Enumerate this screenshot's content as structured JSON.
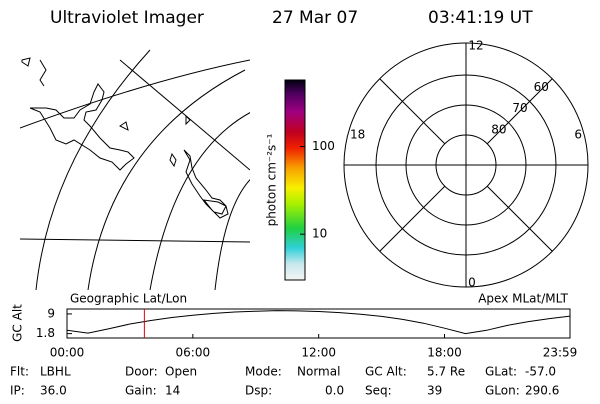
{
  "header": {
    "title": "Ultraviolet Imager",
    "date": "27 Mar 07",
    "time": "03:41:19 UT"
  },
  "colorbar": {
    "label": "photon cm⁻²s⁻¹",
    "range": [
      3,
      575
    ],
    "ticks": [
      10,
      100
    ]
  },
  "polar": {
    "mlt_labels": [
      "12",
      "18",
      "6",
      "0"
    ],
    "lat_rings": [
      {
        "value": 60,
        "label": "60"
      },
      {
        "value": 70,
        "label": "70"
      },
      {
        "value": 80,
        "label": "80"
      }
    ]
  },
  "orbit": {
    "y_label": "GC Alt",
    "left_title": "Geographic Lat/Lon",
    "right_title": "Apex MLat/MLT",
    "xlim": [
      0,
      23.983
    ],
    "ylim": [
      0.2,
      10.8
    ],
    "yticks": [
      1.8,
      9.0
    ],
    "xticks": [
      {
        "value": 0,
        "label": "00:00"
      },
      {
        "value": 6,
        "label": "06:00"
      },
      {
        "value": 12,
        "label": "12:00"
      },
      {
        "value": 18,
        "label": "18:00"
      },
      {
        "value": 23.983,
        "label": "23:59"
      }
    ],
    "x": [
      0,
      1,
      2,
      3,
      4,
      5,
      6,
      7,
      8,
      9,
      10,
      11,
      12,
      13,
      14,
      15,
      16,
      17,
      18,
      19,
      20,
      21,
      22,
      23,
      23.983
    ],
    "values": [
      3.0,
      2.0,
      3.6,
      5.3,
      6.6,
      7.7,
      8.5,
      9.2,
      9.7,
      10.0,
      10.2,
      10.1,
      9.9,
      9.5,
      8.9,
      8.1,
      7.0,
      5.6,
      3.8,
      1.8,
      3.0,
      4.8,
      6.2,
      7.3,
      8.2
    ],
    "current_time": 3.689,
    "current_color": "#e00000"
  },
  "status": [
    [
      {
        "label": "Flt:",
        "value": "LBHL"
      },
      {
        "label": "Door:",
        "value": "Open"
      },
      {
        "label": "Mode:",
        "value": "Normal"
      },
      {
        "label": "GC Alt:",
        "value": "5.7 Re"
      },
      {
        "label": "GLat:",
        "value": "-57.0"
      }
    ],
    [
      {
        "label": "IP:",
        "value": "36.0"
      },
      {
        "label": "Gain:",
        "value": "14"
      },
      {
        "label": "Dsp:",
        "value": "0.0"
      },
      {
        "label": "Seq:",
        "value": "39"
      },
      {
        "label": "GLon:",
        "value": "290.6"
      }
    ]
  ]
}
